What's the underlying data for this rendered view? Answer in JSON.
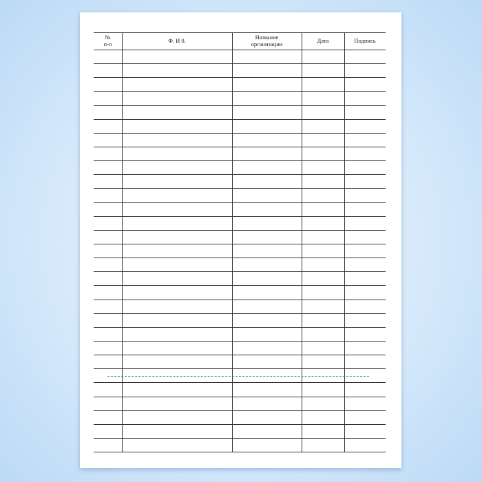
{
  "form": {
    "headers": {
      "number": "№\nп-п",
      "name": "Ф. И 0.",
      "organization": "Название\nорганизации",
      "date": "Дата",
      "signature": "Подпись"
    },
    "empty_rows": 29
  },
  "colors": {
    "background": "#d6e9fb",
    "paper": "#ffffff",
    "lines": "#333333"
  }
}
